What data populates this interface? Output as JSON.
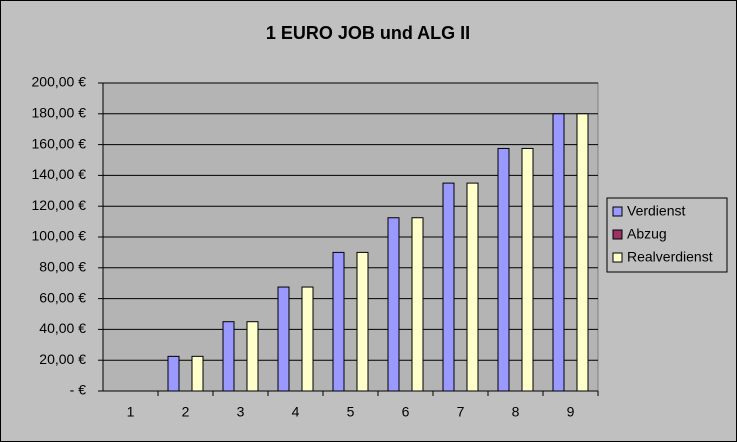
{
  "chart_data": {
    "type": "bar",
    "title": "1 EURO JOB und ALG II",
    "categories": [
      "1",
      "2",
      "3",
      "4",
      "5",
      "6",
      "7",
      "8",
      "9"
    ],
    "series": [
      {
        "name": "Verdienst",
        "color": "#9999ff",
        "values": [
          0,
          22.5,
          45,
          67.5,
          90,
          112.5,
          135,
          157.5,
          180
        ]
      },
      {
        "name": "Abzug",
        "color": "#993366",
        "values": [
          0,
          0,
          0,
          0,
          0,
          0,
          0,
          0,
          0
        ]
      },
      {
        "name": "Realverdienst",
        "color": "#ffffcc",
        "values": [
          0,
          22.5,
          45,
          67.5,
          90,
          112.5,
          135,
          157.5,
          180
        ]
      }
    ],
    "ylim": [
      0,
      200
    ],
    "yticks": [
      {
        "value": 0,
        "label": "-   €"
      },
      {
        "value": 20,
        "label": "20,00 €"
      },
      {
        "value": 40,
        "label": "40,00 €"
      },
      {
        "value": 60,
        "label": "60,00 €"
      },
      {
        "value": 80,
        "label": "80,00 €"
      },
      {
        "value": 100,
        "label": "100,00 €"
      },
      {
        "value": 120,
        "label": "120,00 €"
      },
      {
        "value": 140,
        "label": "140,00 €"
      },
      {
        "value": 160,
        "label": "160,00 €"
      },
      {
        "value": 180,
        "label": "180,00 €"
      },
      {
        "value": 200,
        "label": "200,00 €"
      }
    ],
    "grid": true,
    "legend": "right"
  }
}
